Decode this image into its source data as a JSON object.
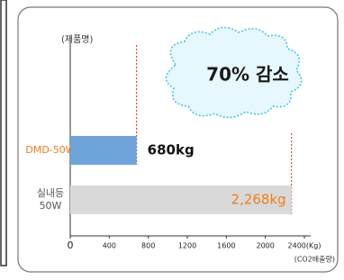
{
  "chart_data": {
    "type": "bar",
    "orientation": "horizontal",
    "y_label": "(제품명)",
    "x_label": "(CO2배출량)",
    "annotation": "70% 감소",
    "categories": [
      "DMD-50W",
      "실내등\n50W"
    ],
    "category_colors": [
      "#f07d1a",
      "#555555"
    ],
    "values": [
      680,
      2268
    ],
    "value_labels": [
      "680kg",
      "2,268kg"
    ],
    "colors": [
      "#6fa4db",
      "#d9d9d9"
    ],
    "value_label_colors": [
      "#111111",
      "#f07d1a"
    ],
    "xlim": [
      0,
      2400
    ],
    "xticks": [
      0,
      400,
      800,
      1200,
      1600,
      2000,
      {
        "value": 2400,
        "label": "2400(Kg)"
      }
    ]
  }
}
